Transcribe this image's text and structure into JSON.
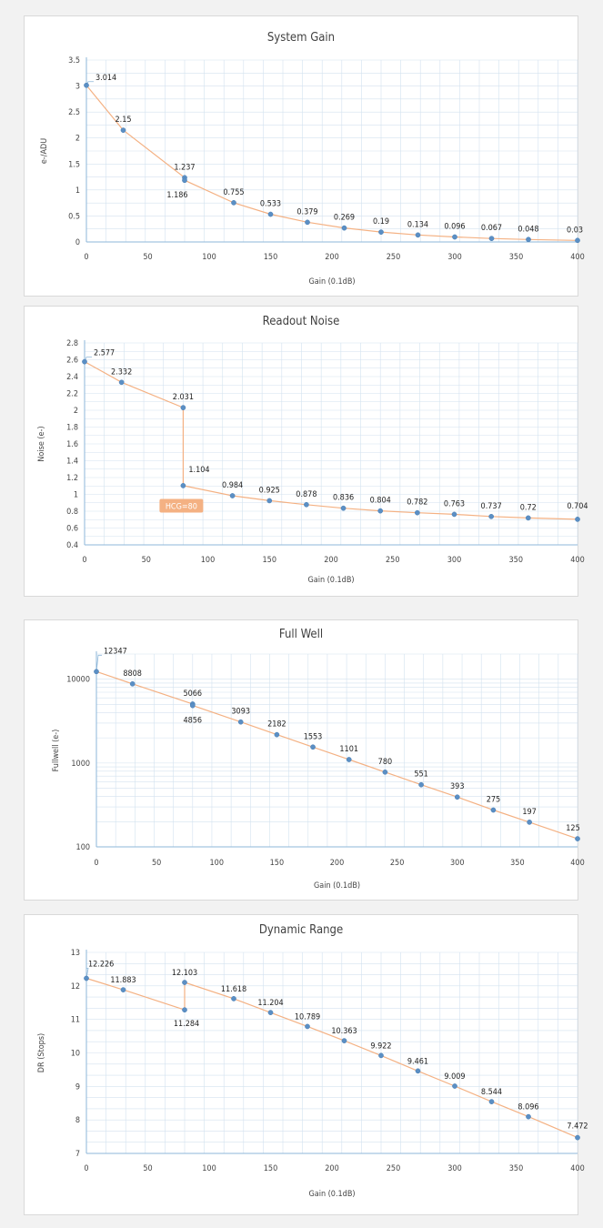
{
  "chart_data": [
    {
      "id": "system-gain",
      "type": "line",
      "title": "System Gain",
      "xlabel": "Gain (0.1dB)",
      "ylabel": "e-/ADU",
      "xlim": [
        0,
        400
      ],
      "ylim": [
        0,
        3.5
      ],
      "yscale": "linear",
      "grid": true,
      "x_ticks": [
        "0",
        "50",
        "100",
        "150",
        "200",
        "250",
        "300",
        "350",
        "400"
      ],
      "y_ticks": [
        "0",
        "0.5",
        "1",
        "1.5",
        "2",
        "2.5",
        "3",
        "3.5"
      ],
      "x": [
        0,
        30,
        80,
        80,
        120,
        150,
        180,
        210,
        240,
        270,
        300,
        330,
        360,
        400
      ],
      "y": [
        3.014,
        2.15,
        1.237,
        1.186,
        0.755,
        0.533,
        0.379,
        0.269,
        0.19,
        0.134,
        0.096,
        0.067,
        0.048,
        0.03
      ],
      "labels": [
        "3.014",
        "2.15",
        "1.237",
        "1.186",
        "0.755",
        "0.533",
        "0.379",
        "0.269",
        "0.19",
        "0.134",
        "0.096",
        "0.067",
        "0.048",
        "0.03"
      ]
    },
    {
      "id": "readout-noise",
      "type": "line",
      "title": "Readout Noise",
      "xlabel": "Gain (0.1dB)",
      "ylabel": "Noise (e-)",
      "xlim": [
        0,
        400
      ],
      "ylim": [
        0.4,
        2.8
      ],
      "yscale": "linear",
      "grid": true,
      "x_ticks": [
        "0",
        "50",
        "100",
        "150",
        "200",
        "250",
        "300",
        "350",
        "400"
      ],
      "y_ticks": [
        "0.4",
        "0.6",
        "0.8",
        "1",
        "1.2",
        "1.4",
        "1.6",
        "1.8",
        "2",
        "2.2",
        "2.4",
        "2.6",
        "2.8"
      ],
      "x": [
        0,
        30,
        80,
        80,
        120,
        150,
        180,
        210,
        240,
        270,
        300,
        330,
        360,
        400
      ],
      "y": [
        2.577,
        2.332,
        2.031,
        1.104,
        0.984,
        0.925,
        0.878,
        0.836,
        0.804,
        0.782,
        0.763,
        0.737,
        0.72,
        0.704
      ],
      "labels": [
        "2.577",
        "2.332",
        "2.031",
        "1.104",
        "0.984",
        "0.925",
        "0.878",
        "0.836",
        "0.804",
        "0.782",
        "0.763",
        "0.737",
        "0.72",
        "0.704"
      ],
      "annotation": "HCG=80"
    },
    {
      "id": "full-well",
      "type": "line",
      "title": "Full Well",
      "xlabel": "Gain (0.1dB)",
      "ylabel": "Fullwell (e-)",
      "xlim": [
        0,
        400
      ],
      "ylim": [
        100,
        20000
      ],
      "yscale": "log",
      "grid": true,
      "x_ticks": [
        "0",
        "50",
        "100",
        "150",
        "200",
        "250",
        "300",
        "350",
        "400"
      ],
      "y_ticks": [
        "100",
        "1000",
        "10000"
      ],
      "x": [
        0,
        30,
        80,
        80,
        120,
        150,
        180,
        210,
        240,
        270,
        300,
        330,
        360,
        400
      ],
      "y": [
        12347,
        8808,
        5066,
        4856,
        3093,
        2182,
        1553,
        1101,
        780,
        551,
        393,
        275,
        197,
        125
      ],
      "labels": [
        "12347",
        "8808",
        "5066",
        "4856",
        "3093",
        "2182",
        "1553",
        "1101",
        "780",
        "551",
        "393",
        "275",
        "197",
        "125"
      ]
    },
    {
      "id": "dynamic-range",
      "type": "line",
      "title": "Dynamic Range",
      "xlabel": "Gain (0.1dB)",
      "ylabel": "DR (Stops)",
      "xlim": [
        0,
        400
      ],
      "ylim": [
        7,
        13
      ],
      "yscale": "linear",
      "grid": true,
      "x_ticks": [
        "0",
        "50",
        "100",
        "150",
        "200",
        "250",
        "300",
        "350",
        "400"
      ],
      "y_ticks": [
        "7",
        "8",
        "9",
        "10",
        "11",
        "12",
        "13"
      ],
      "x": [
        0,
        30,
        80,
        80,
        120,
        150,
        180,
        210,
        240,
        270,
        300,
        330,
        360,
        400
      ],
      "y": [
        12.226,
        11.883,
        11.284,
        12.103,
        11.618,
        11.204,
        10.789,
        10.363,
        9.922,
        9.461,
        9.009,
        8.544,
        8.096,
        7.472
      ],
      "labels": [
        "12.226",
        "11.883",
        "11.284",
        "12.103",
        "11.618",
        "11.204",
        "10.789",
        "10.363",
        "9.922",
        "9.461",
        "9.009",
        "8.544",
        "8.096",
        "7.472"
      ]
    }
  ],
  "colors": {
    "line": "#f4b183",
    "marker": "#5b8fc4",
    "grid": "#d3e2ef",
    "axis": "#8eb7d9",
    "annotation": "#f4b183"
  }
}
